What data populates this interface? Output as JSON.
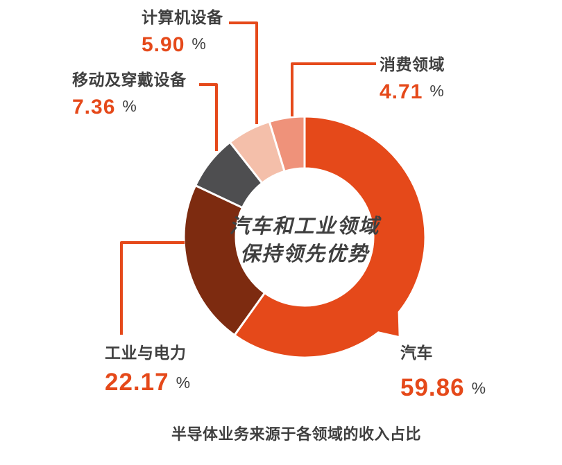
{
  "page": {
    "background": "#FFFFFF"
  },
  "chart_data": {
    "type": "pie",
    "subtype": "donut",
    "title": "半导体业务来源于各领域的收入占比",
    "center_text": [
      "汽车和工业领域",
      "保持领先优势"
    ],
    "unit": "%",
    "start_angle_deg": 0,
    "direction": "clockwise",
    "inner_radius_ratio": 0.57,
    "legend": "none",
    "series": [
      {
        "id": "auto",
        "name": "汽车",
        "value": 59.86,
        "display": "59.86",
        "color": "#E5491A",
        "callout": "tail-pointer"
      },
      {
        "id": "industrial",
        "name": "工业与电力",
        "value": 22.17,
        "display": "22.17",
        "color": "#7D2B10",
        "callout": "leader-line"
      },
      {
        "id": "mobile",
        "name": "移动及穿戴设备",
        "value": 7.36,
        "display": "7.36",
        "color": "#4E4E50",
        "callout": "leader-line"
      },
      {
        "id": "computer",
        "name": "计算机设备",
        "value": 5.9,
        "display": "5.90",
        "color": "#F4BFAA",
        "callout": "leader-line"
      },
      {
        "id": "consumer",
        "name": "消费领域",
        "value": 4.71,
        "display": "4.71",
        "color": "#EF927A",
        "callout": "leader-line"
      }
    ],
    "colors": {
      "accent": "#E5491A",
      "text_dark": "#3F3F3F",
      "leader_line": "#E5491A",
      "slice_gap": "#FFFFFF"
    }
  }
}
